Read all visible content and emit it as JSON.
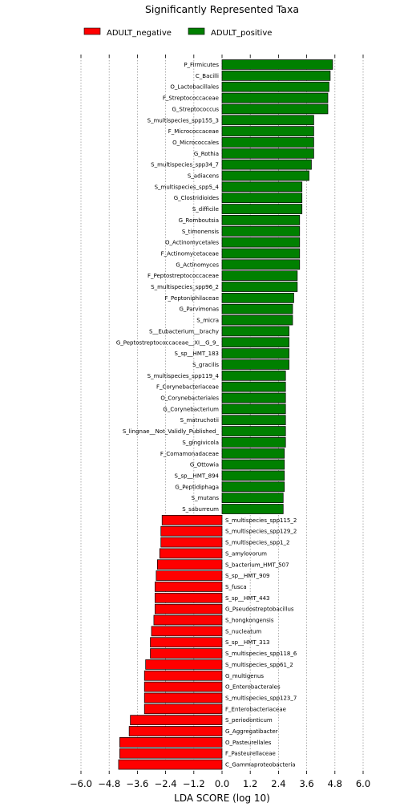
{
  "chart_data": {
    "type": "bar",
    "orientation": "horizontal",
    "title": "Significantly Represented Taxa",
    "xlabel": "LDA SCORE (log 10)",
    "xlim": [
      -6.0,
      6.0
    ],
    "xticks": [
      -6.0,
      -4.8,
      -3.6,
      -2.4,
      -1.2,
      0.0,
      1.2,
      2.4,
      3.6,
      4.8,
      6.0
    ],
    "xtick_labels": [
      "−6.0",
      "−4.8",
      "−3.6",
      "−2.4",
      "−1.2",
      "0.0",
      "1.2",
      "2.4",
      "3.6",
      "4.8",
      "6.0"
    ],
    "grid": "vertical dotted",
    "legend": {
      "position": "top",
      "entries": [
        {
          "label": "ADULT_negative",
          "color": "#ff0000"
        },
        {
          "label": "ADULT_positive",
          "color": "#008000"
        }
      ]
    },
    "bars": [
      {
        "label": "P_Firmicutes",
        "value": 4.7,
        "group": "ADULT_positive"
      },
      {
        "label": "C_Bacilli",
        "value": 4.6,
        "group": "ADULT_positive"
      },
      {
        "label": "O_Lactobacillales",
        "value": 4.55,
        "group": "ADULT_positive"
      },
      {
        "label": "F_Streptococcaceae",
        "value": 4.5,
        "group": "ADULT_positive"
      },
      {
        "label": "G_Streptococcus",
        "value": 4.5,
        "group": "ADULT_positive"
      },
      {
        "label": "S_multispecies_spp155_3",
        "value": 3.9,
        "group": "ADULT_positive"
      },
      {
        "label": "F_Micrococcaceae",
        "value": 3.9,
        "group": "ADULT_positive"
      },
      {
        "label": "O_Micrococcales",
        "value": 3.9,
        "group": "ADULT_positive"
      },
      {
        "label": "G_Rothia",
        "value": 3.9,
        "group": "ADULT_positive"
      },
      {
        "label": "S_multispecies_spp34_7",
        "value": 3.8,
        "group": "ADULT_positive"
      },
      {
        "label": "S_adiacens",
        "value": 3.7,
        "group": "ADULT_positive"
      },
      {
        "label": "S_multispecies_spp5_4",
        "value": 3.4,
        "group": "ADULT_positive"
      },
      {
        "label": "G_Clostridioides",
        "value": 3.4,
        "group": "ADULT_positive"
      },
      {
        "label": "S_difficile",
        "value": 3.4,
        "group": "ADULT_positive"
      },
      {
        "label": "G_Romboutsia",
        "value": 3.3,
        "group": "ADULT_positive"
      },
      {
        "label": "S_timonensis",
        "value": 3.3,
        "group": "ADULT_positive"
      },
      {
        "label": "O_Actinomycetales",
        "value": 3.3,
        "group": "ADULT_positive"
      },
      {
        "label": "F_Actinomycetaceae",
        "value": 3.3,
        "group": "ADULT_positive"
      },
      {
        "label": "G_Actinomyces",
        "value": 3.3,
        "group": "ADULT_positive"
      },
      {
        "label": "F_Peptostreptococcaceae",
        "value": 3.2,
        "group": "ADULT_positive"
      },
      {
        "label": "S_multispecies_spp96_2",
        "value": 3.2,
        "group": "ADULT_positive"
      },
      {
        "label": "F_Peptoniphilaceae",
        "value": 3.05,
        "group": "ADULT_positive"
      },
      {
        "label": "G_Parvimonas",
        "value": 3.0,
        "group": "ADULT_positive"
      },
      {
        "label": "S_micra",
        "value": 3.0,
        "group": "ADULT_positive"
      },
      {
        "label": "S__Eubacterium__brachy",
        "value": 2.85,
        "group": "ADULT_positive"
      },
      {
        "label": "G_Peptostreptococcaceae__XI__G_9_",
        "value": 2.85,
        "group": "ADULT_positive"
      },
      {
        "label": "S_sp__HMT_183",
        "value": 2.85,
        "group": "ADULT_positive"
      },
      {
        "label": "S_gracilis",
        "value": 2.85,
        "group": "ADULT_positive"
      },
      {
        "label": "S_multispecies_spp119_4",
        "value": 2.7,
        "group": "ADULT_positive"
      },
      {
        "label": "F_Corynebacteriaceae",
        "value": 2.7,
        "group": "ADULT_positive"
      },
      {
        "label": "O_Corynebacteriales",
        "value": 2.7,
        "group": "ADULT_positive"
      },
      {
        "label": "G_Corynebacterium",
        "value": 2.7,
        "group": "ADULT_positive"
      },
      {
        "label": "S_matruchotii",
        "value": 2.7,
        "group": "ADULT_positive"
      },
      {
        "label": "S_lingnae__Not_Validly_Published_",
        "value": 2.7,
        "group": "ADULT_positive"
      },
      {
        "label": "S_gingivicola",
        "value": 2.7,
        "group": "ADULT_positive"
      },
      {
        "label": "F_Comamonadaceae",
        "value": 2.65,
        "group": "ADULT_positive"
      },
      {
        "label": "G_Ottowia",
        "value": 2.65,
        "group": "ADULT_positive"
      },
      {
        "label": "S_sp__HMT_894",
        "value": 2.65,
        "group": "ADULT_positive"
      },
      {
        "label": "G_Peptidiphaga",
        "value": 2.65,
        "group": "ADULT_positive"
      },
      {
        "label": "S_mutans",
        "value": 2.6,
        "group": "ADULT_positive"
      },
      {
        "label": "S_saburreum",
        "value": 2.6,
        "group": "ADULT_positive"
      },
      {
        "label": "S_multispecies_spp115_2",
        "value": -2.55,
        "group": "ADULT_negative"
      },
      {
        "label": "S_multispecies_spp129_2",
        "value": -2.6,
        "group": "ADULT_negative"
      },
      {
        "label": "S_multispecies_spp1_2",
        "value": -2.6,
        "group": "ADULT_negative"
      },
      {
        "label": "S_amylovorum",
        "value": -2.65,
        "group": "ADULT_negative"
      },
      {
        "label": "S_bacterium_HMT_507",
        "value": -2.75,
        "group": "ADULT_negative"
      },
      {
        "label": "S_sp__HMT_909",
        "value": -2.8,
        "group": "ADULT_negative"
      },
      {
        "label": "S_fusca",
        "value": -2.85,
        "group": "ADULT_negative"
      },
      {
        "label": "S_sp__HMT_443",
        "value": -2.85,
        "group": "ADULT_negative"
      },
      {
        "label": "G_Pseudostreptobacillus",
        "value": -2.85,
        "group": "ADULT_negative"
      },
      {
        "label": "S_hongkongensis",
        "value": -2.9,
        "group": "ADULT_negative"
      },
      {
        "label": "S_nucleatum",
        "value": -3.0,
        "group": "ADULT_negative"
      },
      {
        "label": "S_sp__HMT_313",
        "value": -3.05,
        "group": "ADULT_negative"
      },
      {
        "label": "S_multispecies_spp118_6",
        "value": -3.05,
        "group": "ADULT_negative"
      },
      {
        "label": "S_multispecies_spp61_2",
        "value": -3.25,
        "group": "ADULT_negative"
      },
      {
        "label": "G_multigenus",
        "value": -3.3,
        "group": "ADULT_negative"
      },
      {
        "label": "O_Enterobacterales",
        "value": -3.3,
        "group": "ADULT_negative"
      },
      {
        "label": "S_multispecies_spp123_7",
        "value": -3.3,
        "group": "ADULT_negative"
      },
      {
        "label": "F_Enterobacteriaceae",
        "value": -3.3,
        "group": "ADULT_negative"
      },
      {
        "label": "S_periodonticum",
        "value": -3.9,
        "group": "ADULT_negative"
      },
      {
        "label": "G_Aggregatibacter",
        "value": -3.95,
        "group": "ADULT_negative"
      },
      {
        "label": "O_Pasteurellales",
        "value": -4.35,
        "group": "ADULT_negative"
      },
      {
        "label": "F_Pasteurellaceae",
        "value": -4.35,
        "group": "ADULT_negative"
      },
      {
        "label": "C_Gammaproteobacteria",
        "value": -4.4,
        "group": "ADULT_negative"
      }
    ]
  }
}
